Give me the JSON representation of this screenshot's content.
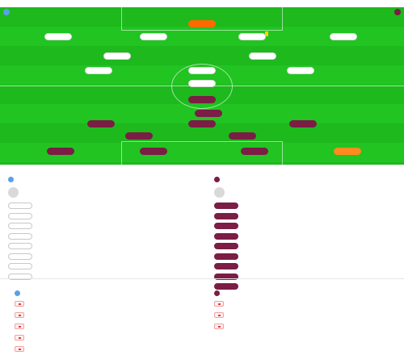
{
  "page": {
    "title": "",
    "subtitle": ""
  },
  "home_team": {
    "name": "",
    "color": "#7b1d45",
    "formation": ""
  },
  "away_team": {
    "name": "",
    "color": "#5aa0e6",
    "formation": ""
  },
  "stadium": "",
  "lineup": {
    "top_players": [
      {
        "number": "",
        "name": "",
        "kit": "keeper-home",
        "card": "",
        "sub_badge": ""
      },
      {
        "number": "",
        "name": "",
        "kit": "white",
        "card": "",
        "sub_badge": ""
      },
      {
        "number": "",
        "name": "",
        "kit": "white",
        "card": "",
        "sub_badge": ""
      },
      {
        "number": "",
        "name": "",
        "kit": "white",
        "card": "yellow",
        "sub_badge": ""
      },
      {
        "number": "",
        "name": "",
        "kit": "white",
        "card": "",
        "sub_badge": ""
      },
      {
        "number": "",
        "name": "",
        "kit": "white",
        "card": "",
        "sub_badge": ""
      },
      {
        "number": "",
        "name": "",
        "kit": "white",
        "card": "",
        "sub_badge": ""
      },
      {
        "number": "",
        "name": "",
        "kit": "white",
        "card": "",
        "sub_badge": ""
      },
      {
        "number": "",
        "name": "",
        "kit": "white",
        "card": "",
        "sub_badge": ""
      },
      {
        "number": "",
        "name": "",
        "kit": "white",
        "card": "",
        "sub_badge": ""
      },
      {
        "number": "",
        "name": "",
        "kit": "white",
        "card": "",
        "sub_badge": ""
      }
    ],
    "bottom_players": [
      {
        "number": "",
        "name": "",
        "kit": "claret",
        "card": "",
        "sub_badge": ""
      },
      {
        "number": "",
        "name": "",
        "kit": "claret",
        "card": "",
        "sub_badge": ""
      },
      {
        "number": "",
        "name": "",
        "kit": "claret",
        "card": "",
        "sub_badge": ""
      },
      {
        "number": "",
        "name": "",
        "kit": "claret",
        "card": "",
        "sub_badge": ""
      },
      {
        "number": "",
        "name": "",
        "kit": "claret",
        "card": "",
        "sub_badge": ""
      },
      {
        "number": "",
        "name": "",
        "kit": "claret",
        "card": "",
        "sub_badge": ""
      },
      {
        "number": "",
        "name": "",
        "kit": "claret",
        "card": "",
        "sub_badge": ""
      },
      {
        "number": "",
        "name": "",
        "kit": "claret",
        "card": "",
        "sub_badge": ""
      },
      {
        "number": "",
        "name": "",
        "kit": "claret",
        "card": "",
        "sub_badge": ""
      },
      {
        "number": "",
        "name": "",
        "kit": "claret",
        "card": "",
        "sub_badge": ""
      },
      {
        "number": "",
        "name": "",
        "kit": "keeper-away",
        "card": "",
        "sub_badge": ""
      }
    ]
  },
  "subs": {
    "title": "",
    "away": {
      "team_name": "",
      "coach": {
        "name": "",
        "role": ""
      },
      "players": [
        {
          "name": "",
          "pos": "",
          "minute": ""
        },
        {
          "name": "",
          "pos": "",
          "minute": ""
        },
        {
          "name": "",
          "pos": "",
          "minute": ""
        },
        {
          "name": "",
          "pos": "",
          "minute": ""
        },
        {
          "name": "",
          "pos": "",
          "minute": ""
        },
        {
          "name": "",
          "pos": "",
          "minute": ""
        },
        {
          "name": "",
          "pos": "",
          "minute": ""
        },
        {
          "name": "",
          "pos": "",
          "minute": ""
        }
      ]
    },
    "home": {
      "team_name": "",
      "coach": {
        "name": "",
        "role": ""
      },
      "players": [
        {
          "name": "",
          "pos": "",
          "minute": ""
        },
        {
          "name": "",
          "pos": "",
          "minute": ""
        },
        {
          "name": "",
          "pos": "",
          "minute": ""
        },
        {
          "name": "",
          "pos": "",
          "minute": ""
        },
        {
          "name": "",
          "pos": "",
          "minute": ""
        },
        {
          "name": "",
          "pos": "",
          "minute": ""
        },
        {
          "name": "",
          "pos": "",
          "minute": ""
        },
        {
          "name": "",
          "pos": "",
          "minute": ""
        },
        {
          "name": "",
          "pos": "",
          "minute": ""
        }
      ]
    }
  },
  "injuries": {
    "title": "",
    "away": {
      "team_name": "",
      "players": [
        {
          "name": "",
          "reason": ""
        },
        {
          "name": "",
          "reason": ""
        },
        {
          "name": "",
          "reason": ""
        },
        {
          "name": "",
          "reason": ""
        },
        {
          "name": "",
          "reason": ""
        }
      ]
    },
    "home": {
      "team_name": "",
      "players": [
        {
          "name": "",
          "reason": ""
        },
        {
          "name": "",
          "reason": ""
        },
        {
          "name": "",
          "reason": ""
        }
      ]
    }
  }
}
